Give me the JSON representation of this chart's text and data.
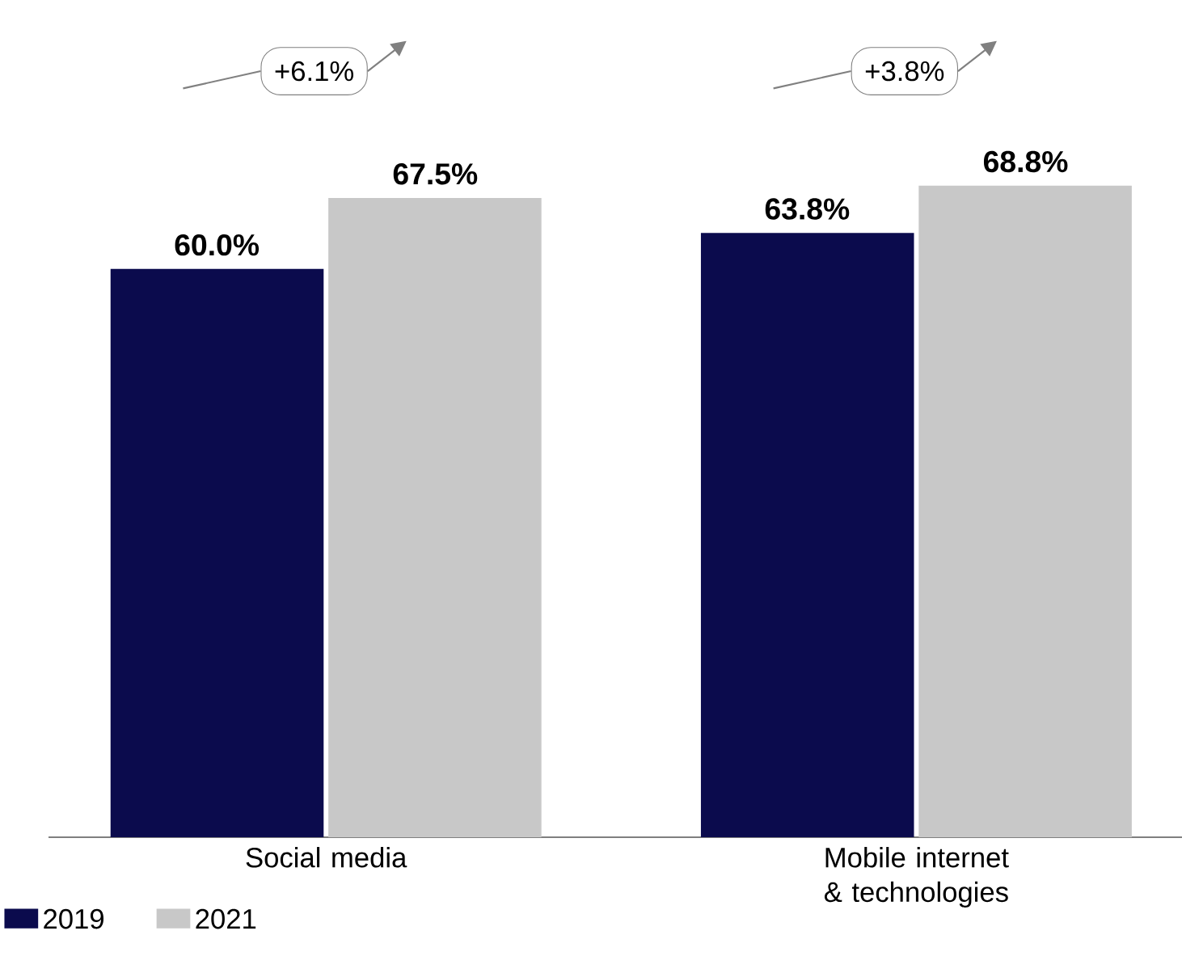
{
  "chart_data": {
    "type": "bar",
    "categories": [
      "Social media",
      "Mobile internet & technologies"
    ],
    "series": [
      {
        "name": "2019",
        "color": "#0b0b4d",
        "values": [
          60.0,
          63.8
        ],
        "value_labels": [
          "60.0%",
          "63.8%"
        ]
      },
      {
        "name": "2021",
        "color": "#c8c8c8",
        "values": [
          67.5,
          68.8
        ],
        "value_labels": [
          "67.5%",
          "68.8%"
        ]
      }
    ],
    "annotations": [
      "+6.1%",
      "+3.8%"
    ],
    "legend": "bottom left"
  }
}
